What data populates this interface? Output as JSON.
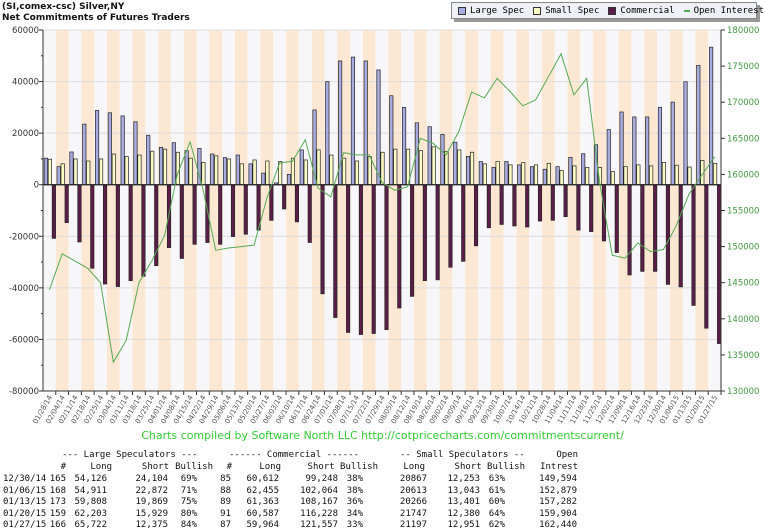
{
  "header": {
    "title": "(SI,comex-csc) Silver,NY",
    "subtitle": "Net Commitments of Futures Traders"
  },
  "legend": [
    {
      "label": "Large Spec",
      "color": "#a8abe0",
      "kind": "box"
    },
    {
      "label": "Small Spec",
      "color": "#fbfbc6",
      "kind": "box"
    },
    {
      "label": "Commercial",
      "color": "#5c1e48",
      "kind": "box"
    },
    {
      "label": "Open Interest",
      "color": "#55aa55",
      "kind": "line"
    }
  ],
  "credit": "Charts compiled by Software North LLC  http://cotpricecharts.com/commitmentscurrent/",
  "chart_data": {
    "type": "bar+line",
    "title": "Net Commitments of Futures Traders",
    "categories": [
      "01/28/14",
      "02/04/14",
      "02/11/14",
      "02/18/14",
      "02/25/14",
      "03/04/14",
      "03/11/14",
      "03/18/14",
      "03/25/14",
      "04/01/14",
      "04/08/14",
      "04/15/14",
      "04/22/14",
      "04/29/14",
      "05/06/14",
      "05/13/14",
      "05/20/14",
      "05/27/14",
      "06/03/14",
      "06/10/14",
      "06/17/14",
      "06/24/14",
      "07/01/14",
      "07/08/14",
      "07/15/14",
      "07/22/14",
      "07/29/14",
      "08/05/14",
      "08/12/14",
      "08/19/14",
      "08/26/14",
      "09/02/14",
      "09/09/14",
      "09/16/14",
      "09/23/14",
      "09/30/14",
      "10/07/14",
      "10/14/14",
      "10/21/14",
      "10/28/14",
      "11/04/14",
      "11/11/14",
      "11/18/14",
      "11/25/14",
      "12/02/14",
      "12/09/14",
      "12/16/14",
      "12/23/14",
      "12/30/14",
      "01/06/15",
      "01/13/15",
      "01/20/15",
      "01/27/15"
    ],
    "series": [
      {
        "name": "Large Spec",
        "axis": "left",
        "color": "#a8abe0",
        "values": [
          10300,
          7000,
          12700,
          23500,
          28800,
          27900,
          26700,
          24400,
          19200,
          14500,
          16300,
          13200,
          14100,
          11900,
          10500,
          11500,
          8100,
          4500,
          700,
          4000,
          13500,
          29000,
          40000,
          48000,
          49500,
          48000,
          44500,
          34500,
          30000,
          24000,
          22500,
          19500,
          16500,
          11000,
          9000,
          6700,
          9000,
          7700,
          7000,
          6000,
          7000,
          10600,
          12000,
          15500,
          21400,
          28200,
          26300,
          26300,
          30022,
          32039,
          39939,
          46274,
          53347
        ]
      },
      {
        "name": "Small Spec",
        "axis": "left",
        "color": "#fbfbc6",
        "values": [
          9900,
          8100,
          10000,
          9200,
          10000,
          11900,
          10900,
          11500,
          13000,
          13800,
          12600,
          10300,
          8600,
          11200,
          10000,
          8100,
          9600,
          9200,
          9000,
          10300,
          9600,
          13500,
          11500,
          10300,
          9200,
          10900,
          12600,
          13800,
          13800,
          13200,
          14700,
          12800,
          13500,
          12600,
          8100,
          9000,
          7700,
          8600,
          7700,
          8300,
          5500,
          7300,
          6700,
          6700,
          5100,
          7000,
          7700,
          7300,
          8614,
          7570,
          6865,
          9367,
          8246
        ]
      },
      {
        "name": "Commercial",
        "axis": "left",
        "color": "#5c1e48",
        "values": [
          -20800,
          -14700,
          -22200,
          -32400,
          -38500,
          -39500,
          -37200,
          -35500,
          -31400,
          -24400,
          -28600,
          -23100,
          -22400,
          -23100,
          -20100,
          -19200,
          -17600,
          -13800,
          -9400,
          -14400,
          -22400,
          -42300,
          -51500,
          -57300,
          -58100,
          -57700,
          -56200,
          -47800,
          -43300,
          -37200,
          -36900,
          -32000,
          -29700,
          -23700,
          -16700,
          -15400,
          -16000,
          -16400,
          -14100,
          -13800,
          -12400,
          -17600,
          -18200,
          -21800,
          -26300,
          -35000,
          -33600,
          -33600,
          -38636,
          -39609,
          -46804,
          -55641,
          -61593
        ]
      },
      {
        "name": "Open Interest",
        "axis": "right",
        "color": "#55aa55",
        "type": "line",
        "values": [
          144000,
          149000,
          148000,
          147000,
          145000,
          134000,
          137000,
          145000,
          148000,
          151500,
          160000,
          164500,
          158000,
          149500,
          149800,
          150000,
          150200,
          156700,
          161600,
          161800,
          164800,
          158100,
          156900,
          163000,
          162700,
          162700,
          158900,
          157800,
          158300,
          165000,
          164300,
          162700,
          165900,
          171400,
          170600,
          173300,
          171500,
          169500,
          170300,
          173500,
          176700,
          171000,
          173300,
          159000,
          148800,
          148400,
          150500,
          149300,
          149594,
          152879,
          157282,
          159904,
          162440
        ]
      }
    ],
    "ylim_left": [
      -80000,
      60000
    ],
    "yticks_left": [
      "60000",
      "40000",
      "20000",
      "0",
      "-20000",
      "-40000",
      "-60000",
      "-80000"
    ],
    "ylim_right": [
      130000,
      180000
    ],
    "yticks_right": [
      "180000",
      "175000",
      "170000",
      "165000",
      "160000",
      "155000",
      "150000",
      "145000",
      "140000",
      "135000",
      "130000"
    ],
    "grid": true,
    "legend_position": "top-right"
  },
  "table": {
    "group_headers": [
      "--- Large Speculators ---",
      "------ Commercial ------",
      "-- Small Speculators --",
      "Open"
    ],
    "col_headers": [
      "#",
      "Long",
      "Short",
      "Bullish",
      "#",
      "Long",
      "Short Bullish",
      "Long",
      "Short Bullish",
      "Intrest"
    ],
    "rows": [
      [
        "12/30/14",
        "165",
        "54,126",
        "24,104",
        "69%",
        "85",
        "60,612",
        "99,248",
        "38%",
        "20867",
        "12,253",
        "63%",
        "149,594"
      ],
      [
        "01/06/15",
        "168",
        "54,911",
        "22,872",
        "71%",
        "88",
        "62,455",
        "102,064",
        "38%",
        "20613",
        "13,043",
        "61%",
        "152,879"
      ],
      [
        "01/13/15",
        "173",
        "59,808",
        "19,869",
        "75%",
        "89",
        "61,363",
        "108,167",
        "36%",
        "20266",
        "13,401",
        "60%",
        "157,282"
      ],
      [
        "01/20/15",
        "159",
        "62,203",
        "15,929",
        "80%",
        "91",
        "60,587",
        "116,228",
        "34%",
        "21747",
        "12,380",
        "64%",
        "159,904"
      ],
      [
        "01/27/15",
        "166",
        "65,722",
        "12,375",
        "84%",
        "87",
        "59,964",
        "121,557",
        "33%",
        "21197",
        "12,951",
        "62%",
        "162,440"
      ]
    ]
  }
}
